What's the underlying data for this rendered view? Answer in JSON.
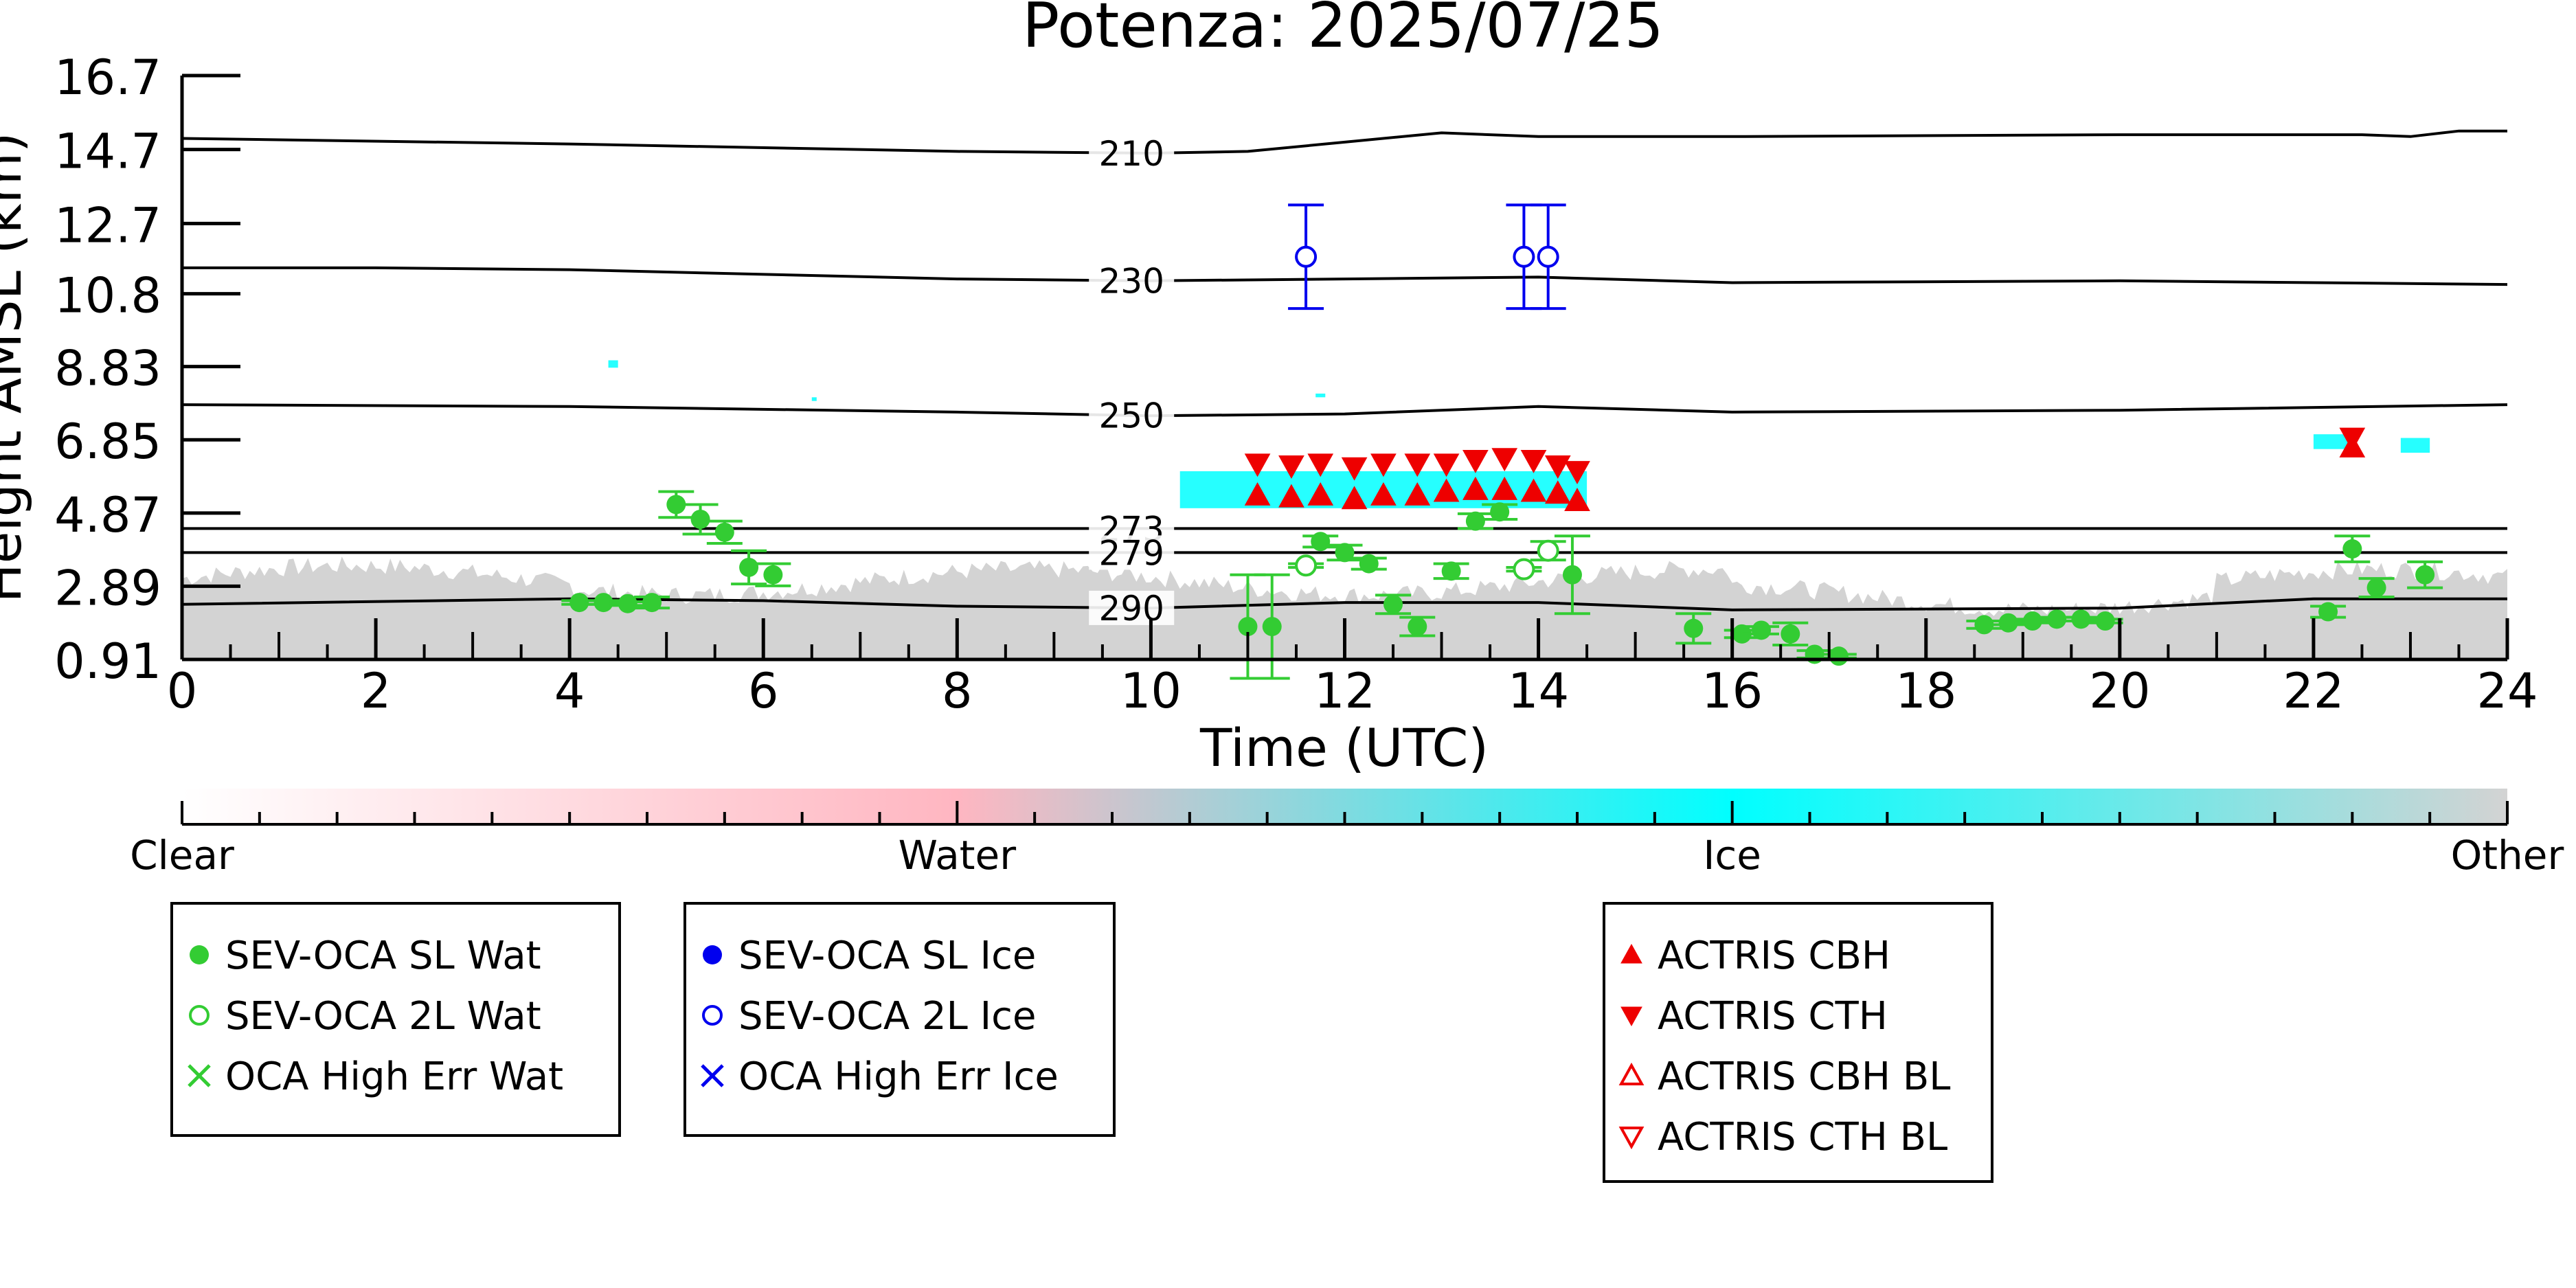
{
  "chart_data": {
    "type": "scatter",
    "title": "Potenza: 2025/07/25",
    "xlabel": "Time (UTC)",
    "ylabel": "Height AMSL (km)",
    "xlim": [
      0,
      24
    ],
    "ylim": [
      0.91,
      16.7
    ],
    "x_ticks": [
      0,
      2,
      4,
      6,
      8,
      10,
      12,
      14,
      16,
      18,
      20,
      22,
      24
    ],
    "y_ticks": [
      "0.91",
      "2.89",
      "4.87",
      "6.85",
      "8.83",
      "10.8",
      "12.7",
      "14.7",
      "16.7"
    ],
    "y_tick_values": [
      0.91,
      2.89,
      4.87,
      6.85,
      8.83,
      10.8,
      12.7,
      14.7,
      16.7
    ],
    "temperature_contours": [
      {
        "label": "210",
        "x": [
          0,
          4,
          8,
          10,
          11,
          12,
          13,
          14,
          16,
          20,
          22.5,
          23,
          23.5,
          24
        ],
        "y": [
          15.0,
          14.85,
          14.65,
          14.6,
          14.65,
          14.9,
          15.15,
          15.05,
          15.05,
          15.1,
          15.1,
          15.05,
          15.2,
          15.2
        ]
      },
      {
        "label": "230",
        "x": [
          0,
          2,
          4,
          8,
          10,
          12,
          14,
          16,
          20,
          24
        ],
        "y": [
          11.5,
          11.5,
          11.45,
          11.2,
          11.15,
          11.2,
          11.25,
          11.1,
          11.15,
          11.05
        ]
      },
      {
        "label": "250",
        "x": [
          0,
          4,
          8,
          10,
          12,
          14,
          16,
          20,
          24
        ],
        "y": [
          7.8,
          7.75,
          7.6,
          7.5,
          7.55,
          7.75,
          7.6,
          7.65,
          7.8
        ]
      },
      {
        "label": "273",
        "x": [
          0,
          24
        ],
        "y": [
          4.45,
          4.45
        ]
      },
      {
        "label": "279",
        "x": [
          0,
          24
        ],
        "y": [
          3.8,
          3.8
        ]
      },
      {
        "label": "290",
        "x": [
          0,
          4,
          6,
          8,
          10,
          12,
          14,
          16,
          20,
          22,
          24
        ],
        "y": [
          2.4,
          2.55,
          2.5,
          2.35,
          2.3,
          2.45,
          2.45,
          2.25,
          2.3,
          2.55,
          2.55
        ]
      }
    ],
    "contour_label_x": 9.8,
    "series": [
      {
        "name": "SEV-OCA SL Wat",
        "marker": "filled-circle",
        "color": "#33cc33",
        "x": [
          4.1,
          4.35,
          4.6,
          4.85,
          5.1,
          5.35,
          5.6,
          5.85,
          6.1,
          11.0,
          11.25,
          11.75,
          12.0,
          12.25,
          12.5,
          12.75,
          13.1,
          13.35,
          13.6,
          14.35,
          15.6,
          16.1,
          16.3,
          16.6,
          16.85,
          17.1,
          18.6,
          18.85,
          19.1,
          19.35,
          19.6,
          19.85,
          22.15,
          22.4,
          22.65,
          23.15
        ],
        "y": [
          2.45,
          2.45,
          2.42,
          2.45,
          5.1,
          4.7,
          4.35,
          3.4,
          3.2,
          1.8,
          1.8,
          4.1,
          3.8,
          3.5,
          2.4,
          1.8,
          3.3,
          4.65,
          4.9,
          3.2,
          1.75,
          1.6,
          1.7,
          1.6,
          1.05,
          1.0,
          1.85,
          1.9,
          1.95,
          2.0,
          2.0,
          1.95,
          2.2,
          3.9,
          2.85,
          3.2
        ],
        "yerr": [
          0.05,
          0.05,
          0.05,
          0.15,
          0.35,
          0.4,
          0.3,
          0.45,
          0.3,
          1.4,
          1.4,
          0.15,
          0.2,
          0.15,
          0.25,
          0.25,
          0.2,
          0.2,
          0.2,
          1.05,
          0.4,
          0.1,
          0.1,
          0.3,
          0.1,
          0.05,
          0.1,
          0.05,
          0.05,
          0.05,
          0.05,
          0.05,
          0.15,
          0.35,
          0.25,
          0.35
        ]
      },
      {
        "name": "SEV-OCA 2L Wat",
        "marker": "open-circle",
        "color": "#33cc33",
        "x": [
          11.6,
          13.85,
          14.1
        ],
        "y": [
          3.45,
          3.35,
          3.85
        ],
        "yerr": [
          0.05,
          0.05,
          0.25
        ]
      },
      {
        "name": "SEV-OCA 2L Ice",
        "marker": "open-circle",
        "color": "#0000ee",
        "x": [
          11.6,
          13.85,
          14.1
        ],
        "y": [
          11.8,
          11.8,
          11.8
        ],
        "yerr": [
          1.4,
          1.4,
          1.4
        ]
      },
      {
        "name": "ACTRIS CBH",
        "marker": "filled-triangle-up",
        "color": "#ee0000",
        "x": [
          11.1,
          11.45,
          11.75,
          12.1,
          12.4,
          12.75,
          13.05,
          13.35,
          13.65,
          13.95,
          14.2,
          14.4,
          22.4
        ],
        "y": [
          5.35,
          5.3,
          5.35,
          5.25,
          5.35,
          5.35,
          5.45,
          5.5,
          5.5,
          5.45,
          5.4,
          5.2,
          6.65
        ]
      },
      {
        "name": "ACTRIS CTH",
        "marker": "filled-triangle-down",
        "color": "#ee0000",
        "x": [
          11.1,
          11.45,
          11.75,
          12.1,
          12.4,
          12.75,
          13.05,
          13.35,
          13.65,
          13.95,
          14.2,
          14.4,
          22.4
        ],
        "y": [
          6.2,
          6.15,
          6.2,
          6.1,
          6.2,
          6.2,
          6.2,
          6.3,
          6.35,
          6.3,
          6.15,
          6.0,
          6.9
        ]
      }
    ],
    "cyan_ice_spans": [
      {
        "x": [
          4.4,
          4.5
        ],
        "y": [
          8.8,
          9.0
        ]
      },
      {
        "x": [
          6.5,
          6.55
        ],
        "y": [
          7.9,
          8.0
        ]
      },
      {
        "x": [
          11.7,
          11.8
        ],
        "y": [
          8.0,
          8.1
        ]
      },
      {
        "x": [
          10.3,
          14.5
        ],
        "y": [
          5.0,
          6.0
        ]
      },
      {
        "x": [
          22.0,
          22.4
        ],
        "y": [
          6.6,
          7.0
        ]
      },
      {
        "x": [
          22.9,
          23.2
        ],
        "y": [
          6.5,
          6.9
        ]
      }
    ],
    "colorbar": {
      "labels": [
        "Clear",
        "Water",
        "Ice",
        "Other"
      ],
      "colors": [
        "#ffffff",
        "#ffb6c1",
        "#00ffff",
        "#d3d3d3"
      ]
    },
    "legends": [
      {
        "entries": [
          {
            "label": "SEV-OCA SL Wat",
            "marker": "filled-circle",
            "color": "#33cc33"
          },
          {
            "label": "SEV-OCA 2L Wat",
            "marker": "open-circle",
            "color": "#33cc33"
          },
          {
            "label": "OCA High Err Wat",
            "marker": "x",
            "color": "#33cc33"
          }
        ]
      },
      {
        "entries": [
          {
            "label": "SEV-OCA SL Ice",
            "marker": "filled-circle",
            "color": "#0000ee"
          },
          {
            "label": "SEV-OCA 2L Ice",
            "marker": "open-circle",
            "color": "#0000ee"
          },
          {
            "label": "OCA High Err Ice",
            "marker": "x",
            "color": "#0000ee"
          }
        ]
      },
      {
        "entries": [
          {
            "label": "ACTRIS CBH",
            "marker": "filled-triangle-up",
            "color": "#ee0000"
          },
          {
            "label": "ACTRIS CTH",
            "marker": "filled-triangle-down",
            "color": "#ee0000"
          },
          {
            "label": "ACTRIS CBH BL",
            "marker": "open-triangle-up",
            "color": "#ee0000"
          },
          {
            "label": "ACTRIS CTH BL",
            "marker": "open-triangle-down",
            "color": "#ee0000"
          }
        ]
      }
    ]
  }
}
